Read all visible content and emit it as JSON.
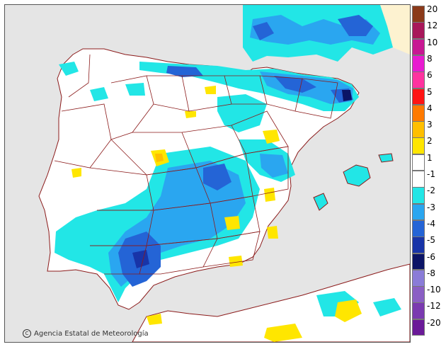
{
  "credit": {
    "icon": "copyright-icon",
    "icon_glyph": "C",
    "text": "Agencia Estatal de Meteorología"
  },
  "legend": [
    {
      "label": "20",
      "color": "#8b3a1a"
    },
    {
      "label": "12",
      "color": "#a8175a"
    },
    {
      "label": "10",
      "color": "#c81893"
    },
    {
      "label": "8",
      "color": "#e81bd0"
    },
    {
      "label": "6",
      "color": "#ff33a0"
    },
    {
      "label": "5",
      "color": "#ff1414"
    },
    {
      "label": "4",
      "color": "#ff7a00"
    },
    {
      "label": "3",
      "color": "#ffbf00"
    },
    {
      "label": "2",
      "color": "#ffe600"
    },
    {
      "label": "1",
      "color": "#ffffff"
    },
    {
      "label": "-1",
      "color": "#ffffff"
    },
    {
      "label": "-2",
      "color": "#22e6e6"
    },
    {
      "label": "-3",
      "color": "#2aa6f0"
    },
    {
      "label": "-4",
      "color": "#2464d6"
    },
    {
      "label": "-5",
      "color": "#1834a8"
    },
    {
      "label": "-6",
      "color": "#0b1466"
    },
    {
      "label": "-8",
      "color": "#8a7cd8"
    },
    {
      "label": "-10",
      "color": "#8a5fc4"
    },
    {
      "label": "-12",
      "color": "#7a3ab0"
    },
    {
      "label": "-20",
      "color": "#6a1a98"
    }
  ],
  "colors": {
    "sea": "#e5e5e5",
    "land": "#ffffff",
    "border": "#8b1a1a",
    "cyan": "#22e6e6",
    "light_blue": "#2aa6f0",
    "blue": "#2464d6",
    "dark_blue": "#1834a8",
    "navy": "#0b1466",
    "yellow": "#ffe600",
    "orange": "#ffbf00",
    "france": "#fdf2d0"
  }
}
